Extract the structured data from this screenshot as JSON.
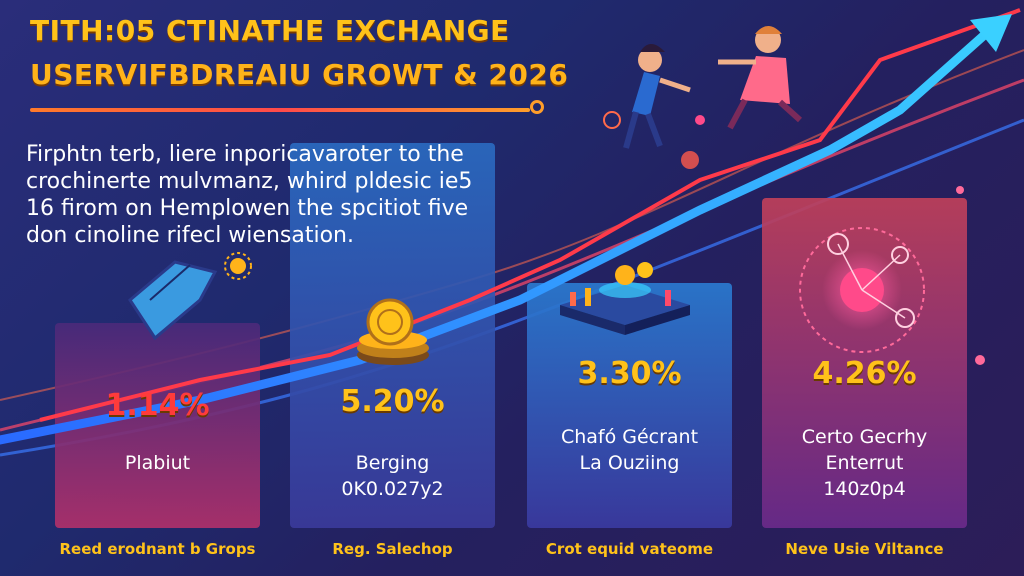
{
  "header": {
    "title_line_1": "TITH:05 CTINATHE EXCHANGE",
    "title_line_2": "USERVIFBDREAIU GROWT & 2026"
  },
  "description": {
    "lines": [
      "Firphtn terb, liere inporicavaroter to the",
      "crochinerte mulvmanz, whird pldesic ie5",
      "16 firom on Hemplowen the spcitiot five",
      "don cinoline rifecl wiensation."
    ]
  },
  "chart_data": {
    "type": "bar",
    "title": "TITH:05 CTINATHE EXCHANGE USERVIFBDREAIU GROWT & 2026",
    "categories": [
      "Reed erodnant b Grops",
      "Reg. Salechop",
      "Crot equid vateome",
      "Neve Usie Viltance"
    ],
    "values": [
      1.14,
      5.2,
      3.3,
      4.26
    ],
    "value_labels": [
      "1.14%",
      "5.20%",
      "3.30%",
      "4.26%"
    ],
    "value_colors": [
      "#ff3b3b",
      "#ffc21a",
      "#ffc21a",
      "#ffc21a"
    ],
    "card_labels": [
      [
        "Plabiut"
      ],
      [
        "Berging",
        "0K0.027y2"
      ],
      [
        "Chafó Gécrant",
        "La Ouziing"
      ],
      [
        "Certo Gecrhy",
        "Enterrut",
        "140z0p4"
      ]
    ],
    "card_colors": [
      "#8a2a5a",
      "#2a5aa0",
      "#2a5a9a",
      "#a0305a"
    ],
    "trend": "rising",
    "xlabel": "",
    "ylabel": "",
    "grid": false
  },
  "icons": [
    "diamond-icon",
    "coin-stack-icon",
    "platform-icon",
    "network-globe-icon",
    "people-illustration-icon",
    "growth-arrow-icon"
  ]
}
